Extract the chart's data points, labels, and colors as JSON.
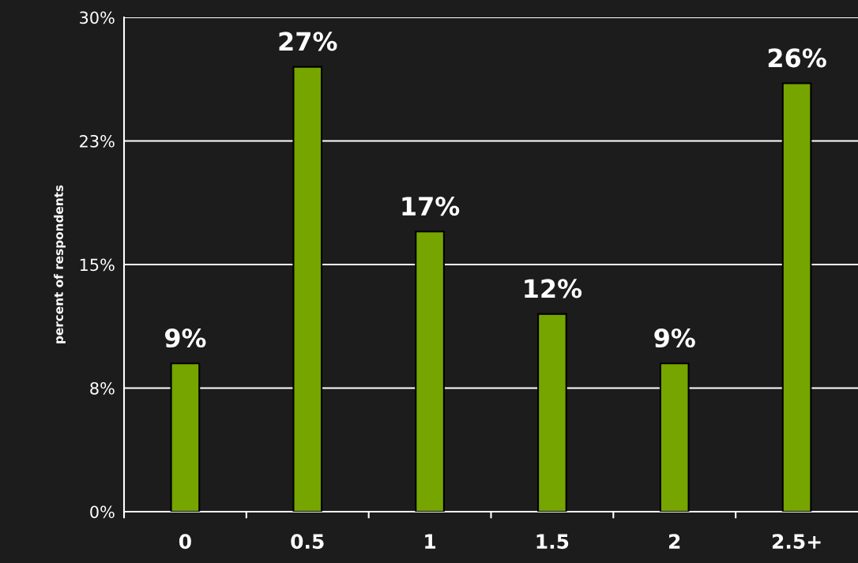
{
  "chart_data": {
    "type": "bar",
    "ylabel": "percent of respondents",
    "categories": [
      "0",
      "0.5",
      "1",
      "1.5",
      "2",
      "2.5+"
    ],
    "values": [
      9,
      27,
      17,
      12,
      9,
      26
    ],
    "color": "#76a500",
    "value_labels": [
      "9%",
      "27%",
      "17%",
      "12%",
      "9%",
      "26%"
    ],
    "ylim": [
      0,
      30
    ],
    "yticks": [
      {
        "value": 0,
        "label": "0%"
      },
      {
        "value": 7.5,
        "label": "8%"
      },
      {
        "value": 15,
        "label": "15%"
      },
      {
        "value": 22.5,
        "label": "23%"
      },
      {
        "value": 30,
        "label": "30%"
      }
    ],
    "grid": "y"
  }
}
